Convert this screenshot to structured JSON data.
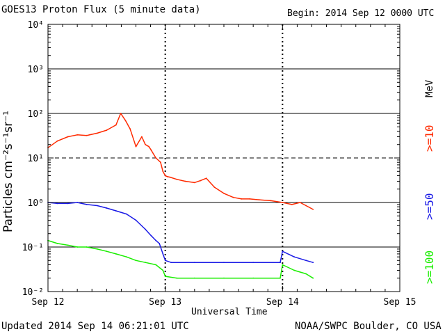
{
  "header": {
    "title": "GOES13 Proton Flux (5 minute data)",
    "begin": "Begin: 2014 Sep 12 0000 UTC"
  },
  "footer": {
    "updated": "Updated 2014 Sep 14 06:21:01 UTC",
    "credit": "NOAA/SWPC Boulder, CO USA"
  },
  "chart_data": {
    "type": "line",
    "title": "GOES13 Proton Flux (5 minute data)",
    "xlabel": "Universal Time",
    "ylabel": "Particles cm⁻²s⁻¹sr⁻¹",
    "yscale": "log",
    "ylim": [
      0.01,
      10000
    ],
    "xlim_days": [
      0,
      3
    ],
    "x_tick_labels": [
      "Sep 12",
      "Sep 13",
      "Sep 14",
      "Sep 15"
    ],
    "y_tick_labels": [
      "10⁻²",
      "10⁻¹",
      "10⁰",
      "10¹",
      "10²",
      "10³",
      "10⁴"
    ],
    "grid": "horizontal lines at each decade (10¹ dashed); dashed vertical day markers",
    "unit_label": "MeV",
    "series": [
      {
        "name": ">=10",
        "color": "#ff2a00",
        "x": [
          0.0,
          0.08,
          0.17,
          0.25,
          0.33,
          0.42,
          0.5,
          0.58,
          0.62,
          0.66,
          0.7,
          0.75,
          0.8,
          0.83,
          0.86,
          0.88,
          0.92,
          0.96,
          0.98,
          1.0,
          1.02,
          1.04,
          1.1,
          1.17,
          1.25,
          1.3,
          1.35,
          1.42,
          1.5,
          1.58,
          1.65,
          1.72,
          1.8,
          1.9,
          2.0,
          2.08,
          2.15,
          2.2,
          2.26
        ],
        "values": [
          17,
          24,
          30,
          33,
          32,
          36,
          42,
          55,
          100,
          70,
          45,
          18,
          30,
          20,
          18,
          15,
          10,
          8,
          5,
          4,
          3.8,
          3.7,
          3.3,
          3.0,
          2.8,
          3.1,
          3.5,
          2.2,
          1.6,
          1.3,
          1.2,
          1.2,
          1.15,
          1.1,
          1.0,
          0.9,
          1.0,
          0.85,
          0.7
        ]
      },
      {
        "name": ">=50",
        "color": "#1a1ae6",
        "x": [
          0.0,
          0.08,
          0.17,
          0.25,
          0.33,
          0.42,
          0.5,
          0.58,
          0.67,
          0.75,
          0.83,
          0.88,
          0.92,
          0.95,
          0.98,
          1.0,
          1.05,
          1.25,
          1.5,
          1.75,
          1.98,
          2.0,
          2.1,
          2.2,
          2.26
        ],
        "values": [
          1.0,
          0.95,
          0.95,
          1.0,
          0.9,
          0.85,
          0.75,
          0.65,
          0.55,
          0.4,
          0.25,
          0.18,
          0.14,
          0.12,
          0.07,
          0.05,
          0.045,
          0.045,
          0.045,
          0.045,
          0.045,
          0.08,
          0.06,
          0.05,
          0.045
        ]
      },
      {
        "name": ">=100",
        "color": "#1aee00",
        "x": [
          0.0,
          0.08,
          0.17,
          0.25,
          0.33,
          0.42,
          0.5,
          0.58,
          0.67,
          0.75,
          0.83,
          0.92,
          0.98,
          1.0,
          1.1,
          1.25,
          1.5,
          1.75,
          1.98,
          2.0,
          2.1,
          2.2,
          2.26
        ],
        "values": [
          0.14,
          0.12,
          0.11,
          0.1,
          0.1,
          0.09,
          0.08,
          0.07,
          0.06,
          0.05,
          0.045,
          0.04,
          0.03,
          0.022,
          0.02,
          0.02,
          0.02,
          0.02,
          0.02,
          0.04,
          0.03,
          0.025,
          0.02
        ]
      }
    ]
  }
}
